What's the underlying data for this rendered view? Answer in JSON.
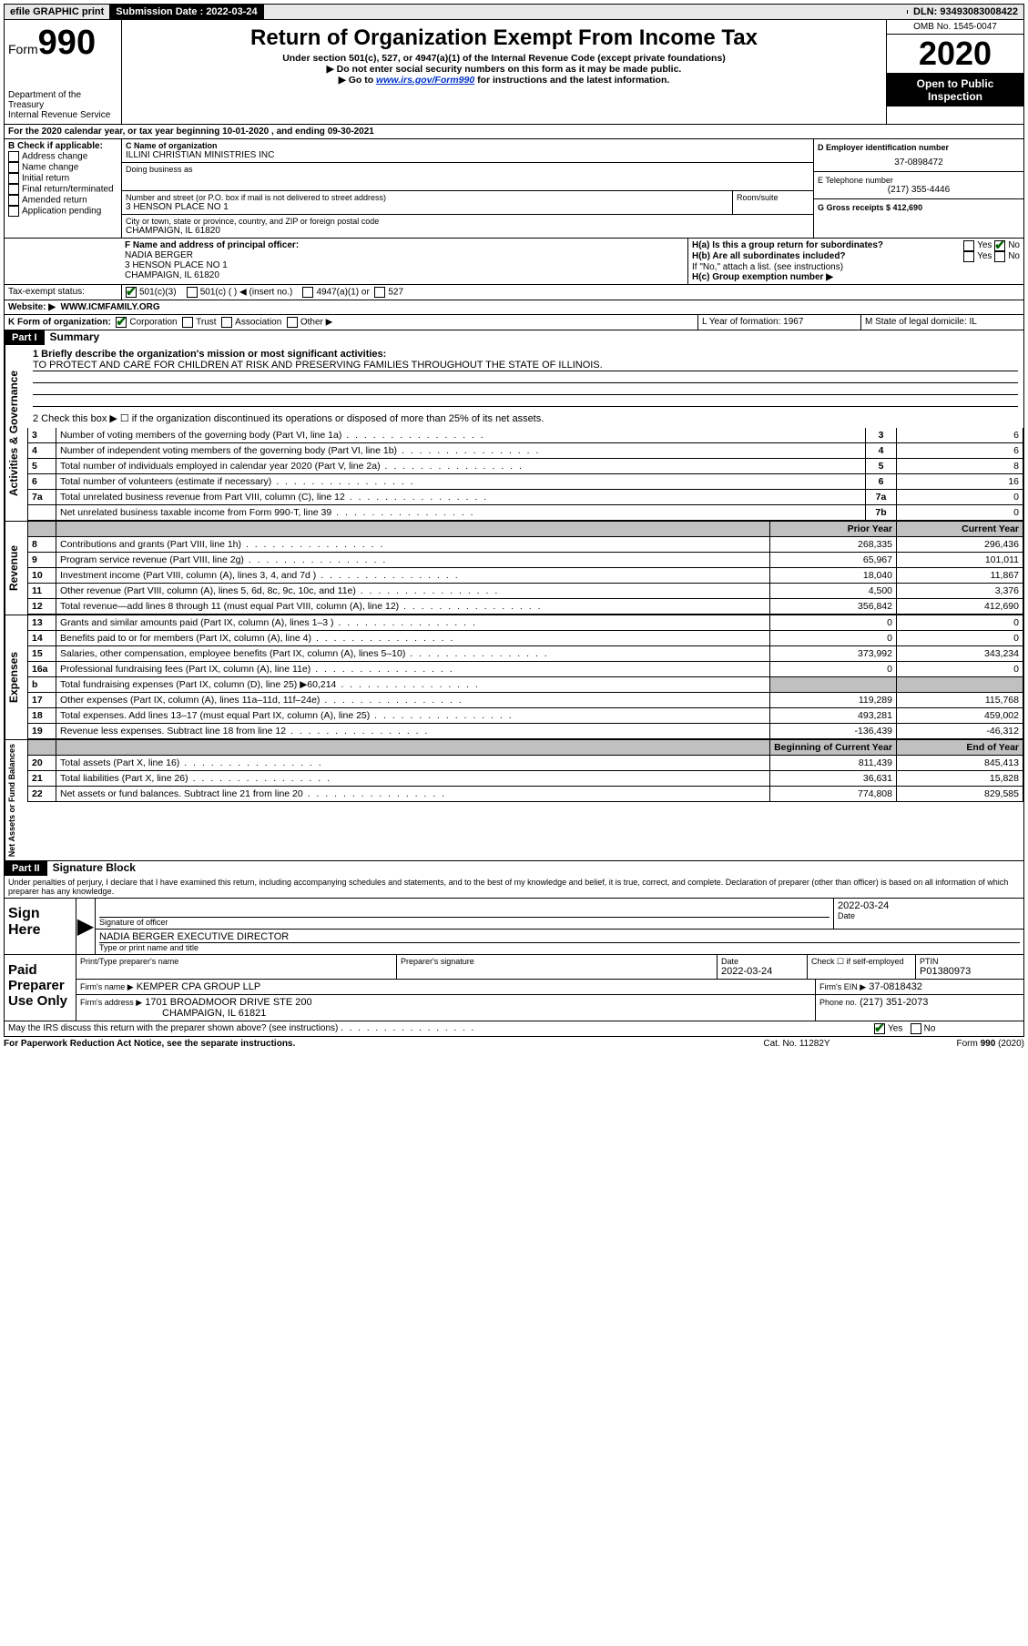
{
  "topbar": {
    "efile": "efile GRAPHIC print",
    "sub_label": "Submission Date : 2022-03-24",
    "dln": "DLN: 93493083008422"
  },
  "header": {
    "form_prefix": "Form",
    "form_num": "990",
    "dept": "Department of the Treasury",
    "irs": "Internal Revenue Service",
    "title": "Return of Organization Exempt From Income Tax",
    "sub1": "Under section 501(c), 527, or 4947(a)(1) of the Internal Revenue Code (except private foundations)",
    "sub2": "▶ Do not enter social security numbers on this form as it may be made public.",
    "sub3_pre": "▶ Go to ",
    "sub3_link": "www.irs.gov/Form990",
    "sub3_post": " for instructions and the latest information.",
    "omb": "OMB No. 1545-0047",
    "year": "2020",
    "open": "Open to Public Inspection"
  },
  "line_a": "For the 2020 calendar year, or tax year beginning 10-01-2020    , and ending 09-30-2021",
  "box_b": {
    "label": "B Check if applicable:",
    "opts": [
      "Address change",
      "Name change",
      "Initial return",
      "Final return/terminated",
      "Amended return",
      "Application pending"
    ]
  },
  "box_c": {
    "name_label": "C Name of organization",
    "name": "ILLINI CHRISTIAN MINISTRIES INC",
    "dba_label": "Doing business as",
    "addr_label": "Number and street (or P.O. box if mail is not delivered to street address)",
    "room_label": "Room/suite",
    "addr": "3 HENSON PLACE NO 1",
    "city_label": "City or town, state or province, country, and ZIP or foreign postal code",
    "city": "CHAMPAIGN, IL  61820"
  },
  "box_d": {
    "label": "D Employer identification number",
    "val": "37-0898472"
  },
  "box_e": {
    "label": "E Telephone number",
    "val": "(217) 355-4446"
  },
  "box_g": {
    "label": "G Gross receipts $ 412,690"
  },
  "box_f": {
    "label": "F  Name and address of principal officer:",
    "name": "NADIA BERGER",
    "addr1": "3 HENSON PLACE NO 1",
    "addr2": "CHAMPAIGN, IL  61820"
  },
  "box_h": {
    "ha": "H(a)  Is this a group return for subordinates?",
    "hb": "H(b)  Are all subordinates included?",
    "hb_note": "If \"No,\" attach a list. (see instructions)",
    "hc": "H(c)  Group exemption number ▶",
    "yes": "Yes",
    "no": "No"
  },
  "box_i": {
    "label": "Tax-exempt status:",
    "o1": "501(c)(3)",
    "o2": "501(c) (  ) ◀ (insert no.)",
    "o3": "4947(a)(1) or",
    "o4": "527"
  },
  "box_j": {
    "label": "Website: ▶",
    "val": "WWW.ICMFAMILY.ORG"
  },
  "box_k": {
    "label": "K Form of organization:",
    "o1": "Corporation",
    "o2": "Trust",
    "o3": "Association",
    "o4": "Other ▶"
  },
  "box_l": {
    "label": "L Year of formation: 1967"
  },
  "box_m": {
    "label": "M State of legal domicile: IL"
  },
  "part1": {
    "bar": "Part I",
    "title": "Summary",
    "q1": "1  Briefly describe the organization's mission or most significant activities:",
    "q1_val": "TO PROTECT AND CARE FOR CHILDREN AT RISK AND PRESERVING FAMILIES THROUGHOUT THE STATE OF ILLINOIS.",
    "q2": "2   Check this box ▶ ☐  if the organization discontinued its operations or disposed of more than 25% of its net assets.",
    "rows_gov": [
      {
        "n": "3",
        "t": "Number of voting members of the governing body (Part VI, line 1a)",
        "i": "3",
        "v": "6"
      },
      {
        "n": "4",
        "t": "Number of independent voting members of the governing body (Part VI, line 1b)",
        "i": "4",
        "v": "6"
      },
      {
        "n": "5",
        "t": "Total number of individuals employed in calendar year 2020 (Part V, line 2a)",
        "i": "5",
        "v": "8"
      },
      {
        "n": "6",
        "t": "Total number of volunteers (estimate if necessary)",
        "i": "6",
        "v": "16"
      },
      {
        "n": "7a",
        "t": "Total unrelated business revenue from Part VIII, column (C), line 12",
        "i": "7a",
        "v": "0"
      },
      {
        "n": "",
        "t": "Net unrelated business taxable income from Form 990-T, line 39",
        "i": "7b",
        "v": "0"
      }
    ],
    "hdr_prior": "Prior Year",
    "hdr_curr": "Current Year",
    "rows_rev": [
      {
        "n": "8",
        "t": "Contributions and grants (Part VIII, line 1h)",
        "p": "268,335",
        "c": "296,436"
      },
      {
        "n": "9",
        "t": "Program service revenue (Part VIII, line 2g)",
        "p": "65,967",
        "c": "101,011"
      },
      {
        "n": "10",
        "t": "Investment income (Part VIII, column (A), lines 3, 4, and 7d )",
        "p": "18,040",
        "c": "11,867"
      },
      {
        "n": "11",
        "t": "Other revenue (Part VIII, column (A), lines 5, 6d, 8c, 9c, 10c, and 11e)",
        "p": "4,500",
        "c": "3,376"
      },
      {
        "n": "12",
        "t": "Total revenue—add lines 8 through 11 (must equal Part VIII, column (A), line 12)",
        "p": "356,842",
        "c": "412,690"
      }
    ],
    "rows_exp": [
      {
        "n": "13",
        "t": "Grants and similar amounts paid (Part IX, column (A), lines 1–3 )",
        "p": "0",
        "c": "0"
      },
      {
        "n": "14",
        "t": "Benefits paid to or for members (Part IX, column (A), line 4)",
        "p": "0",
        "c": "0"
      },
      {
        "n": "15",
        "t": "Salaries, other compensation, employee benefits (Part IX, column (A), lines 5–10)",
        "p": "373,992",
        "c": "343,234"
      },
      {
        "n": "16a",
        "t": "Professional fundraising fees (Part IX, column (A), line 11e)",
        "p": "0",
        "c": "0"
      },
      {
        "n": "b",
        "t": "Total fundraising expenses (Part IX, column (D), line 25) ▶60,214",
        "p": "GREY",
        "c": "GREY"
      },
      {
        "n": "17",
        "t": "Other expenses (Part IX, column (A), lines 11a–11d, 11f–24e)",
        "p": "119,289",
        "c": "115,768"
      },
      {
        "n": "18",
        "t": "Total expenses. Add lines 13–17 (must equal Part IX, column (A), line 25)",
        "p": "493,281",
        "c": "459,002"
      },
      {
        "n": "19",
        "t": "Revenue less expenses. Subtract line 18 from line 12",
        "p": "-136,439",
        "c": "-46,312"
      }
    ],
    "hdr_beg": "Beginning of Current Year",
    "hdr_end": "End of Year",
    "rows_net": [
      {
        "n": "20",
        "t": "Total assets (Part X, line 16)",
        "p": "811,439",
        "c": "845,413"
      },
      {
        "n": "21",
        "t": "Total liabilities (Part X, line 26)",
        "p": "36,631",
        "c": "15,828"
      },
      {
        "n": "22",
        "t": "Net assets or fund balances. Subtract line 21 from line 20",
        "p": "774,808",
        "c": "829,585"
      }
    ],
    "vert_gov": "Activities & Governance",
    "vert_rev": "Revenue",
    "vert_exp": "Expenses",
    "vert_net": "Net Assets or Fund Balances"
  },
  "part2": {
    "bar": "Part II",
    "title": "Signature Block",
    "decl": "Under penalties of perjury, I declare that I have examined this return, including accompanying schedules and statements, and to the best of my knowledge and belief, it is true, correct, and complete. Declaration of preparer (other than officer) is based on all information of which preparer has any knowledge.",
    "sign_here": "Sign Here",
    "sig_officer": "Signature of officer",
    "date_lbl": "Date",
    "date_val": "2022-03-24",
    "name_title": "NADIA BERGER  EXECUTIVE DIRECTOR",
    "type_name": "Type or print name and title",
    "paid": "Paid Preparer Use Only",
    "prep_name_lbl": "Print/Type preparer's name",
    "prep_sig_lbl": "Preparer's signature",
    "prep_date": "2022-03-24",
    "check_self": "Check ☐ if self-employed",
    "ptin_lbl": "PTIN",
    "ptin": "P01380973",
    "firm_name_lbl": "Firm's name    ▶",
    "firm_name": "KEMPER CPA GROUP LLP",
    "firm_ein_lbl": "Firm's EIN ▶",
    "firm_ein": "37-0818432",
    "firm_addr_lbl": "Firm's address ▶",
    "firm_addr1": "1701 BROADMOOR DRIVE STE 200",
    "firm_addr2": "CHAMPAIGN, IL  61821",
    "phone_lbl": "Phone no.",
    "phone": "(217) 351-2073",
    "discuss": "May the IRS discuss this return with the preparer shown above? (see instructions)",
    "yes": "Yes",
    "no": "No"
  },
  "footer": {
    "pra": "For Paperwork Reduction Act Notice, see the separate instructions.",
    "cat": "Cat. No. 11282Y",
    "form": "Form 990 (2020)"
  }
}
